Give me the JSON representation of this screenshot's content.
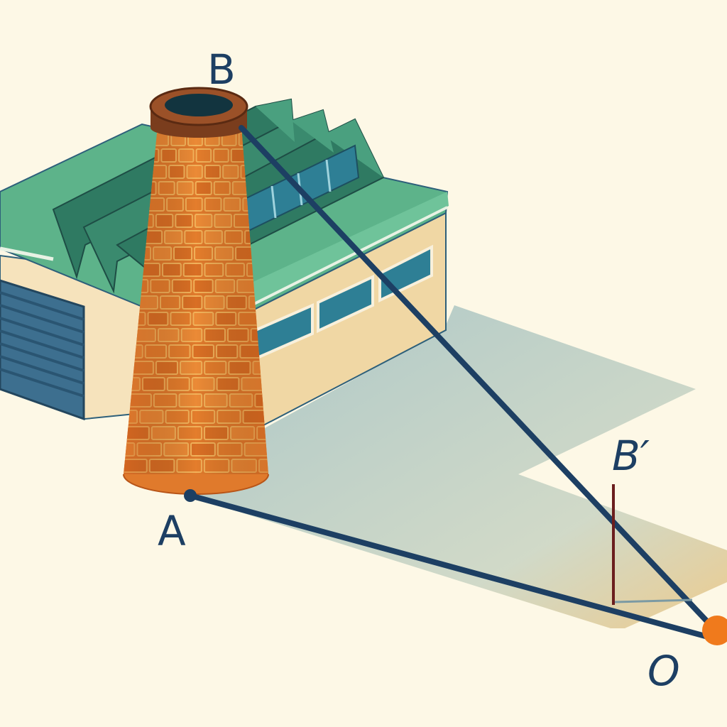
{
  "labels": {
    "B": "B",
    "A": "A",
    "B_prime": "B′",
    "O": "O"
  },
  "colors": {
    "background": "#fdf8e6",
    "roof": "#5db38a",
    "roof_dark": "#2f7a62",
    "wall": "#f3ddb0",
    "window": "#2e7f95",
    "door": "#3d6f8f",
    "brick": "#e07a2c",
    "mortar": "#f2b25a",
    "chimney_rim": "#7a3d1d",
    "sight_line": "#1d3f63",
    "pole": "#6b1e1e",
    "point_O": "#f07a1c",
    "shadow": "#a9c4c8"
  },
  "icons": {
    "building": "factory-building",
    "chimney": "brick-chimney",
    "pole": "vertical-marker-pole"
  }
}
